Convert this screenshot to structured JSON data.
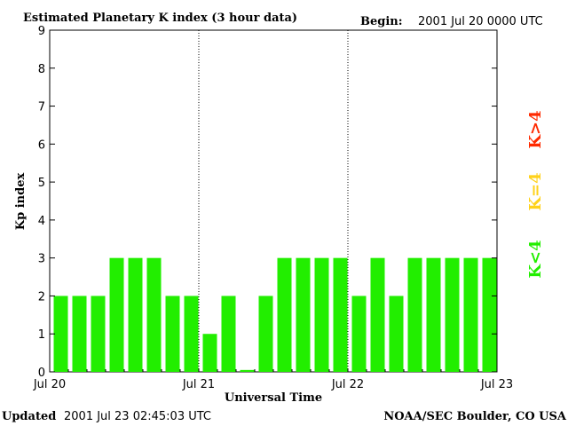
{
  "header": {
    "title": "Estimated Planetary K index (3 hour data)",
    "begin_label": "Begin:",
    "begin_value": "2001 Jul 20 0000 UTC"
  },
  "footer": {
    "updated_label": "Updated",
    "updated_value": "2001 Jul 23 02:45:03 UTC",
    "source": "NOAA/SEC Boulder, CO USA"
  },
  "legend": [
    {
      "label": "K>4",
      "color": "#ff2a00"
    },
    {
      "label": "K=4",
      "color": "#ffd21a"
    },
    {
      "label": "K<4",
      "color": "#22ee00"
    }
  ],
  "chart_data": {
    "type": "bar",
    "title": "Estimated Planetary K index (3 hour data)",
    "xlabel": "Universal Time",
    "ylabel": "Kp index",
    "ylim": [
      0,
      9
    ],
    "yticks": [
      "0",
      "1",
      "2",
      "3",
      "4",
      "5",
      "6",
      "7",
      "8",
      "9"
    ],
    "xticks": [
      "Jul 20",
      "Jul 21",
      "Jul 22",
      "Jul 23"
    ],
    "interval_hours": 3,
    "bar_color": "#22ee00",
    "values": [
      2,
      2,
      2,
      3,
      3,
      3,
      2,
      2,
      1,
      2,
      0.05,
      2,
      3,
      3,
      3,
      3,
      2,
      3,
      2,
      3,
      3,
      3,
      3,
      3
    ]
  }
}
